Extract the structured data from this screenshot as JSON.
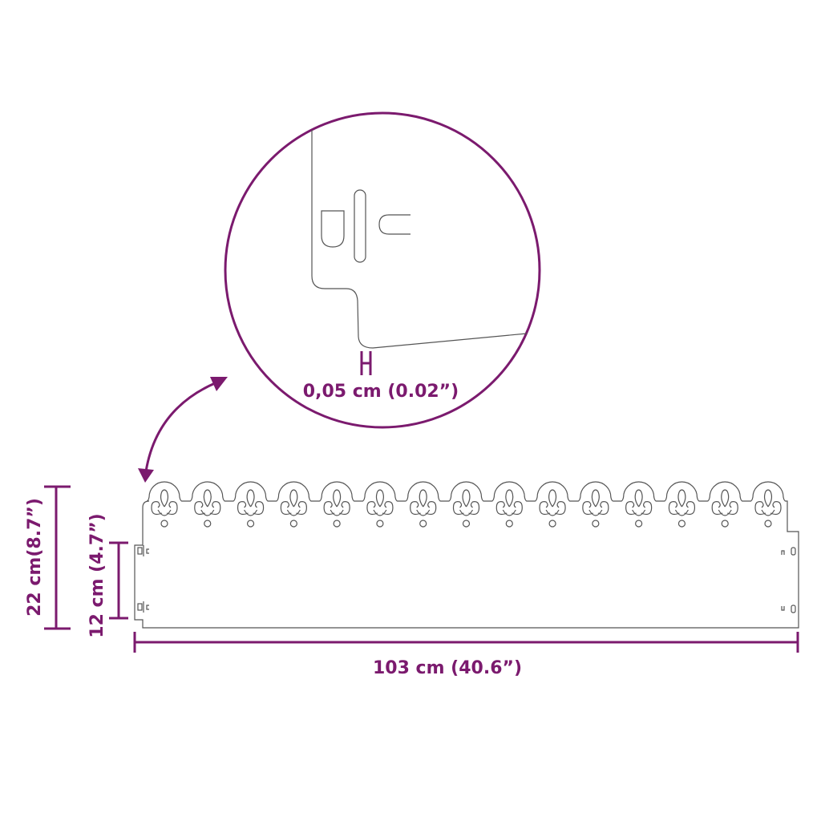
{
  "colors": {
    "accent": "#7b1a6e",
    "outline": "#555555"
  },
  "detail": {
    "thickness_label": "0,05 cm (0.02”)"
  },
  "dimensions": {
    "width_label": "103 cm (40.6”)",
    "height_label": "22 cm(8.7”)",
    "inner_height_label": "12 cm (4.7”)"
  },
  "panel": {
    "ornament_count": 15
  }
}
